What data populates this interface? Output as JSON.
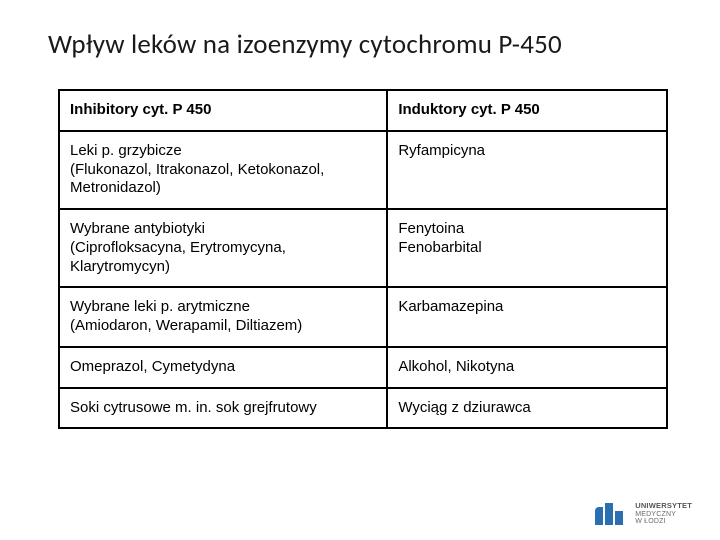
{
  "title": "Wpływ leków na izoenzymy cytochromu P-450",
  "table": {
    "columns": [
      "Inhibitory cyt. P 450",
      "Induktory cyt. P 450"
    ],
    "col_widths": [
      "54%",
      "46%"
    ],
    "rows": [
      [
        "Leki p. grzybicze\n(Flukonazol, Itrakonazol, Ketokonazol, Metronidazol)",
        "Ryfampicyna"
      ],
      [
        "Wybrane antybiotyki\n(Ciprofloksacyna, Erytromycyna, Klarytromycyn)",
        "Fenytoina\nFenobarbital"
      ],
      [
        "Wybrane leki p. arytmiczne\n(Amiodaron, Werapamil, Diltiazem)",
        "Karbamazepina"
      ],
      [
        "Omeprazol, Cymetydyna",
        "Alkohol, Nikotyna"
      ],
      [
        "Soki cytrusowe m. in. sok grejfrutowy",
        "Wyciąg z dziurawca"
      ]
    ],
    "border_color": "#000000",
    "border_width": 2,
    "header_font_weight": 700,
    "cell_font_size": 15,
    "text_color": "#000000"
  },
  "logo": {
    "mark_color": "#2a6fb0",
    "text_line1": "UNIWERSYTET",
    "text_line2": "MEDYCZNY",
    "text_line3": "W ŁODZI"
  },
  "background_color": "#ffffff"
}
